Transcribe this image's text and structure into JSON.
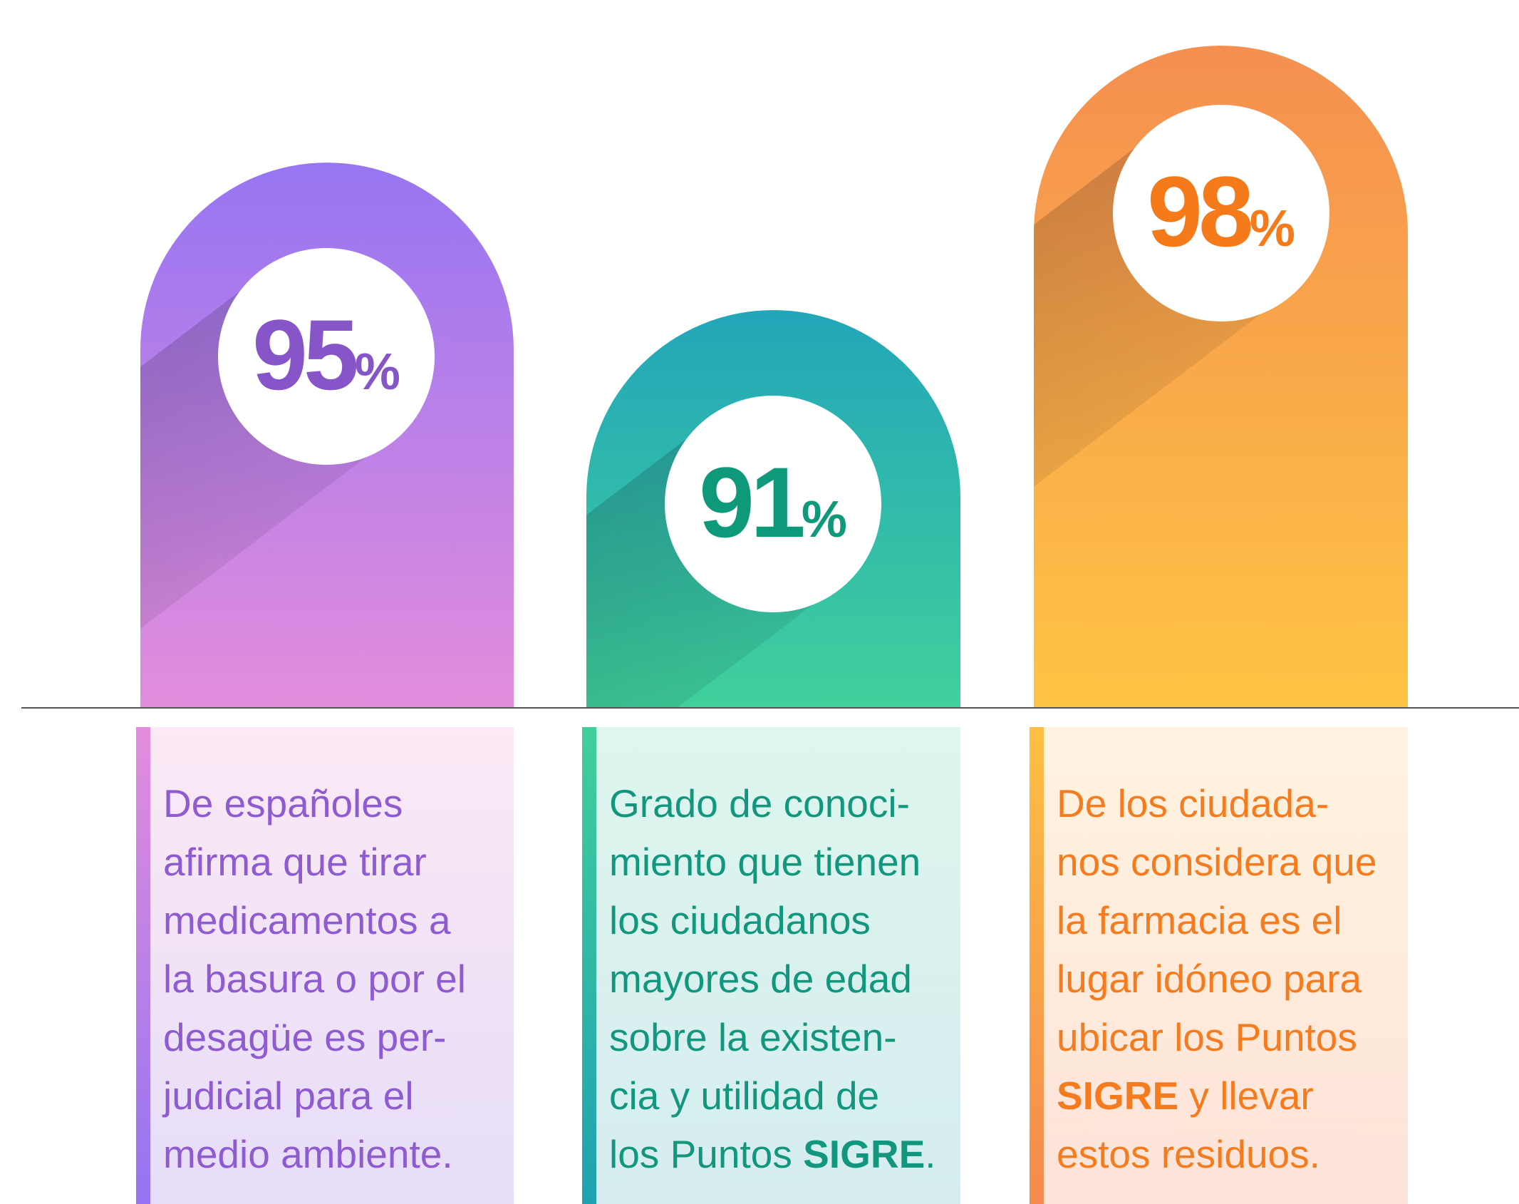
{
  "items": [
    {
      "value": 95,
      "unit": "%",
      "lines": [
        "De españoles",
        "afirma que tirar",
        "medicamentos a",
        "la basura o por el",
        "desagüe es per-",
        "judicial para el",
        "medio ambiente."
      ]
    },
    {
      "value": 91,
      "unit": "%",
      "lines": [
        "Grado de conoci-",
        "miento que tienen",
        "los ciudadanos",
        "mayores de edad",
        "sobre la existen-",
        "cia y utilidad de",
        [
          {
            "text": "los Puntos "
          },
          {
            "text": "SIGRE",
            "bold": true
          },
          {
            "text": "."
          }
        ]
      ]
    },
    {
      "value": 98,
      "unit": "%",
      "lines": [
        "De los ciudada-",
        "nos considera que",
        "la farmacia es el",
        "lugar idóneo para",
        "ubicar los Puntos",
        [
          {
            "text": "SIGRE",
            "bold": true
          },
          {
            "text": " y llevar"
          }
        ],
        "estos residuos."
      ]
    }
  ]
}
